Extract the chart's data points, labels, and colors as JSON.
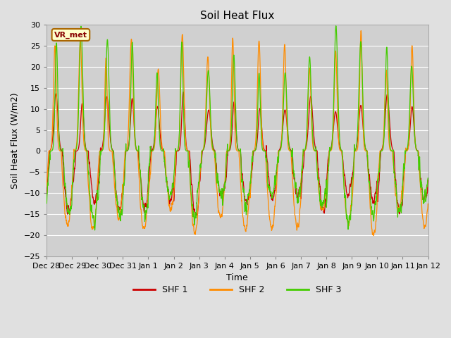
{
  "title": "Soil Heat Flux",
  "xlabel": "Time",
  "ylabel": "Soil Heat Flux (W/m2)",
  "ylim": [
    -25,
    30
  ],
  "yticks": [
    -25,
    -20,
    -15,
    -10,
    -5,
    0,
    5,
    10,
    15,
    20,
    25,
    30
  ],
  "colors": {
    "SHF 1": "#cc0000",
    "SHF 2": "#ff8c00",
    "SHF 3": "#44cc00"
  },
  "fig_bg": "#e0e0e0",
  "plot_bg": "#d0d0d0",
  "annotation_text": "VR_met",
  "annotation_bg": "#ffffcc",
  "annotation_border": "#aa6600",
  "line_width": 0.9,
  "n_days": 15,
  "xtick_labels": [
    "Dec 28",
    "Dec 29",
    "Dec 30",
    "Dec 31",
    "Jan 1",
    "Jan 2",
    "Jan 3",
    "Jan 4",
    "Jan 5",
    "Jan 6",
    "Jan 7",
    "Jan 8",
    "Jan 9",
    "Jan 10",
    "Jan 11",
    "Jan 12"
  ],
  "legend_entries": [
    "SHF 1",
    "SHF 2",
    "SHF 3"
  ]
}
